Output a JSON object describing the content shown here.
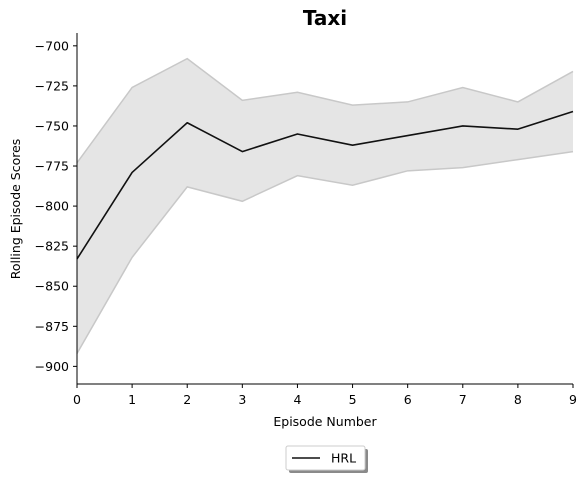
{
  "chart_data": {
    "type": "line",
    "title": "Taxi",
    "xlabel": "Episode Number",
    "ylabel": "Rolling Episode Scores",
    "x": [
      0,
      1,
      2,
      3,
      4,
      5,
      6,
      7,
      8,
      9
    ],
    "xlim": [
      0,
      9
    ],
    "ylim": [
      -911,
      -692
    ],
    "xticks": [
      0,
      1,
      2,
      3,
      4,
      5,
      6,
      7,
      8,
      9
    ],
    "yticks": [
      -700,
      -725,
      -750,
      -775,
      -800,
      -825,
      -850,
      -875,
      -900
    ],
    "grid": false,
    "legend_position": "bottom-center, below plot",
    "series": [
      {
        "name": "HRL",
        "color": "#111111",
        "values": [
          -833,
          -779,
          -748,
          -766,
          -755,
          -762,
          -756,
          -750,
          -752,
          -741
        ],
        "band_upper": [
          -773,
          -726,
          -708,
          -734,
          -729,
          -737,
          -735,
          -726,
          -735,
          -716
        ],
        "band_lower": [
          -892,
          -832,
          -788,
          -797,
          -781,
          -787,
          -778,
          -776,
          -771,
          -766
        ],
        "band_fill": "#e5e5e5",
        "band_edge": "#c8c8c8"
      }
    ]
  }
}
